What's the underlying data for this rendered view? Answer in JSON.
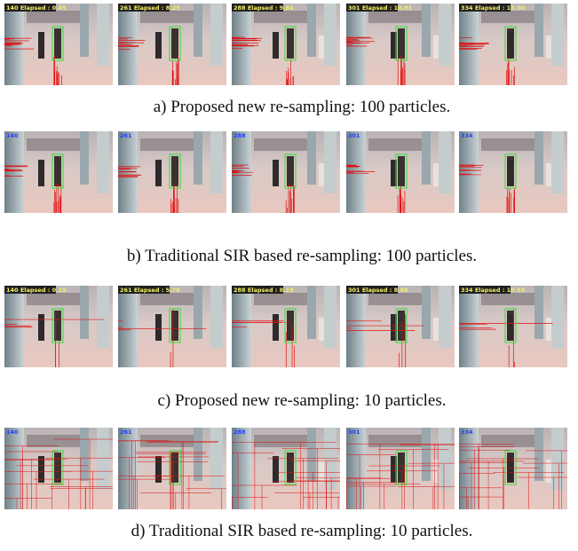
{
  "figure": {
    "rows": [
      {
        "caption": "a) Proposed new re-sampling: 100 particles.",
        "frames": [
          "140 Elapsed : 0.45",
          "261 Elapsed : 8.25",
          "288 Elapsed : 9.84",
          "301 Elapsed : 10.81",
          "334 Elapsed : 13.00"
        ]
      },
      {
        "caption": "b) Traditional SIR based re-sampling: 100 particles.",
        "frames": [
          "140",
          "261",
          "288",
          "301",
          "334"
        ]
      },
      {
        "caption": "c) Proposed new re-sampling: 10 particles.",
        "frames": [
          "140 Elapsed : 0.19",
          "261 Elapsed : 5.76",
          "288 Elapsed : 8.19",
          "301 Elapsed : 8.88",
          "334 Elapsed : 10.53"
        ]
      },
      {
        "caption": "d) Traditional SIR based re-sampling: 10 particles.",
        "frames": [
          "140",
          "261",
          "288",
          "301",
          "334"
        ]
      }
    ]
  }
}
